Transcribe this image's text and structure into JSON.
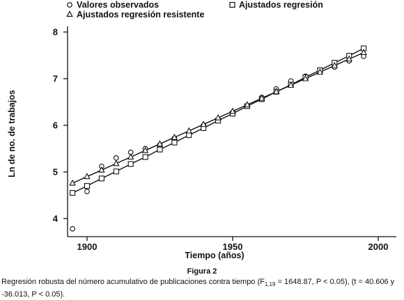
{
  "chart_data": {
    "type": "scatter",
    "xlabel": "Tiempo (años)",
    "ylabel": "Ln de no. de trabajos",
    "xlim": [
      1893,
      2005
    ],
    "ylim": [
      3.6,
      8.1
    ],
    "x_ticks": [
      1900,
      1950,
      2000
    ],
    "y_ticks": [
      4,
      5,
      6,
      7,
      8
    ],
    "x_tick_labels": [
      "1900",
      "1950",
      "2000"
    ],
    "y_tick_labels": [
      "4",
      "5",
      "6",
      "7",
      "8"
    ],
    "grid": false,
    "legend_position": "top",
    "series": [
      {
        "name": "Valores observados",
        "marker": "circle",
        "x": [
          1895,
          1900,
          1905,
          1910,
          1915,
          1920,
          1925,
          1930,
          1935,
          1940,
          1945,
          1950,
          1955,
          1960,
          1965,
          1970,
          1975,
          1980,
          1985,
          1990,
          1995
        ],
        "y": [
          3.78,
          4.58,
          5.12,
          5.3,
          5.42,
          5.5,
          5.58,
          5.72,
          5.82,
          6.0,
          6.1,
          6.25,
          6.42,
          6.6,
          6.78,
          6.95,
          7.05,
          7.15,
          7.25,
          7.38,
          7.48
        ]
      },
      {
        "name": "Ajustados regresión",
        "marker": "square",
        "x": [
          1895,
          1900,
          1905,
          1910,
          1915,
          1920,
          1925,
          1930,
          1935,
          1940,
          1945,
          1950,
          1955,
          1960,
          1965,
          1970,
          1975,
          1980,
          1985,
          1990,
          1995
        ],
        "y": [
          4.55,
          4.7,
          4.86,
          5.01,
          5.17,
          5.32,
          5.48,
          5.63,
          5.79,
          5.94,
          6.1,
          6.25,
          6.41,
          6.56,
          6.72,
          6.87,
          7.03,
          7.18,
          7.34,
          7.49,
          7.65
        ]
      },
      {
        "name": "Ajustados regresión resistente",
        "marker": "triangle",
        "x": [
          1895,
          1900,
          1905,
          1910,
          1915,
          1920,
          1925,
          1930,
          1935,
          1940,
          1945,
          1950,
          1955,
          1960,
          1965,
          1970,
          1975,
          1980,
          1985,
          1990,
          1995
        ],
        "y": [
          4.76,
          4.9,
          5.04,
          5.18,
          5.32,
          5.46,
          5.6,
          5.74,
          5.88,
          6.02,
          6.16,
          6.3,
          6.44,
          6.58,
          6.72,
          6.86,
          7.0,
          7.14,
          7.28,
          7.42,
          7.56
        ]
      }
    ]
  },
  "legend": {
    "observed": "Valores observados",
    "fitted": "Ajustados regresión",
    "resistant": "Ajustados regresión resistente"
  },
  "caption": {
    "figure_label": "Figura 2",
    "text_before_sub": "Regresión robusta del número acumulativo de publicaciones contra tiempo (F",
    "subscript": "1,19",
    "text_after_sub": " = 1648.87, P < 0.05), (t = 40.606 y -36.013, P < 0.05)."
  }
}
